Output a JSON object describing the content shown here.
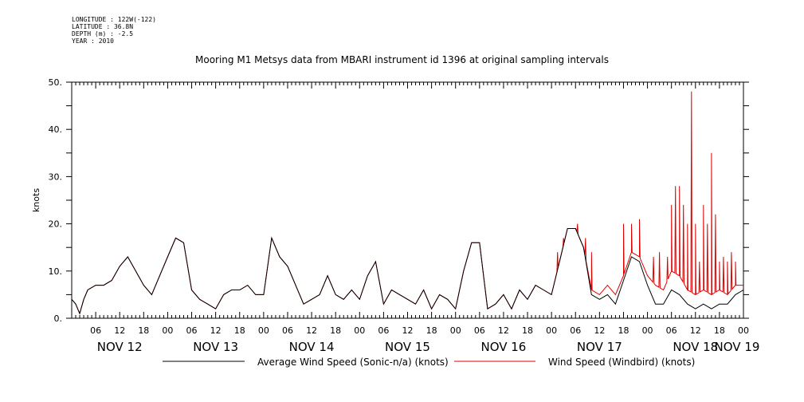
{
  "header": {
    "longitude": "LONGITUDE : 122W(-122)",
    "latitude": "LATITUDE : 36.8N",
    "depth": "DEPTH (m) : -2.5",
    "year": "YEAR : 2010"
  },
  "chart_data": {
    "type": "line",
    "title": "Mooring M1 Metsys data from MBARI instrument id 1396 at original sampling intervals",
    "ylabel": "knots",
    "ylim": [
      0,
      50
    ],
    "y_ticks": [
      "0.",
      "10.",
      "20.",
      "30.",
      "40.",
      "50."
    ],
    "xlim_hours": [
      0,
      168
    ],
    "hour_tick_labels": [
      "06",
      "12",
      "18",
      "00",
      "06",
      "12",
      "18",
      "00",
      "06",
      "12",
      "18",
      "00",
      "06",
      "12",
      "18",
      "00",
      "06",
      "12",
      "18",
      "00",
      "06",
      "12",
      "18",
      "00",
      "06",
      "12",
      "18",
      "00"
    ],
    "day_labels": [
      "NOV 12",
      "NOV 13",
      "NOV 14",
      "NOV 15",
      "NOV 16",
      "NOV 17",
      "NOV 18",
      "NOV 19"
    ],
    "grid": false,
    "legend_position": "bottom",
    "colors": {
      "sonic": "#000000",
      "windbird": "#dd0000"
    },
    "series": [
      {
        "name": "Average Wind Speed (Sonic-n/a) (knots)",
        "key": "sonic",
        "x_hours": [
          0,
          1,
          2,
          3,
          4,
          6,
          8,
          10,
          12,
          14,
          16,
          18,
          20,
          22,
          24,
          26,
          28,
          30,
          32,
          34,
          36,
          38,
          40,
          42,
          44,
          46,
          48,
          50,
          52,
          54,
          56,
          58,
          60,
          62,
          64,
          66,
          68,
          70,
          72,
          74,
          76,
          78,
          80,
          82,
          84,
          86,
          88,
          90,
          92,
          94,
          96,
          98,
          100,
          102,
          104,
          106,
          108,
          110,
          112,
          114,
          116,
          118,
          120,
          122,
          124,
          126,
          128,
          130,
          132,
          134,
          136,
          138,
          140,
          142,
          144,
          146,
          148,
          150,
          152,
          154,
          156,
          158,
          160,
          162,
          164,
          166,
          168
        ],
        "values": [
          4,
          3,
          1,
          4,
          6,
          7,
          7,
          8,
          11,
          13,
          10,
          7,
          5,
          9,
          13,
          17,
          16,
          6,
          4,
          3,
          2,
          5,
          6,
          6,
          7,
          5,
          5,
          17,
          13,
          11,
          7,
          3,
          4,
          5,
          9,
          5,
          4,
          6,
          4,
          9,
          12,
          3,
          6,
          5,
          4,
          3,
          6,
          2,
          5,
          4,
          2,
          10,
          16,
          16,
          2,
          3,
          5,
          2,
          6,
          4,
          7,
          6,
          5,
          12,
          19,
          19,
          15,
          5,
          4,
          5,
          3,
          8,
          13,
          12,
          7,
          3,
          3,
          6,
          5,
          3,
          2,
          3,
          2,
          3,
          3,
          5,
          6
        ]
      },
      {
        "name": "Wind Speed (Windbird) (knots)",
        "key": "windbird",
        "x_hours": [
          0,
          1,
          2,
          3,
          4,
          6,
          8,
          10,
          12,
          14,
          16,
          18,
          20,
          22,
          24,
          26,
          28,
          30,
          32,
          34,
          36,
          38,
          40,
          42,
          44,
          46,
          48,
          50,
          52,
          54,
          56,
          58,
          60,
          62,
          64,
          66,
          68,
          70,
          72,
          74,
          76,
          78,
          80,
          82,
          84,
          86,
          88,
          90,
          92,
          94,
          96,
          98,
          100,
          102,
          104,
          106,
          108,
          110,
          112,
          114,
          116,
          118,
          120,
          122,
          124,
          126,
          128,
          130,
          132,
          134,
          136,
          138,
          140,
          142,
          144,
          146,
          148,
          150,
          152,
          154,
          156,
          158,
          160,
          162,
          164,
          166,
          168
        ],
        "values": [
          4,
          3,
          1,
          4,
          6,
          7,
          7,
          8,
          11,
          13,
          10,
          7,
          5,
          9,
          13,
          17,
          16,
          6,
          4,
          3,
          2,
          5,
          6,
          6,
          7,
          5,
          5,
          17,
          13,
          11,
          7,
          3,
          4,
          5,
          9,
          5,
          4,
          6,
          4,
          9,
          12,
          3,
          6,
          5,
          4,
          3,
          6,
          2,
          5,
          4,
          2,
          10,
          16,
          16,
          2,
          3,
          5,
          2,
          6,
          4,
          7,
          6,
          5,
          12,
          19,
          19,
          15,
          6,
          5,
          7,
          5,
          9,
          14,
          13,
          9,
          7,
          6,
          10,
          9,
          6,
          5,
          6,
          5,
          6,
          5,
          7,
          7
        ]
      }
    ],
    "windbird_spikes": {
      "x_hours": [
        121.5,
        123,
        125,
        126.5,
        128.5,
        130,
        138,
        140,
        142,
        145.5,
        147,
        149,
        150,
        151,
        152,
        153,
        154,
        155,
        156,
        157,
        158,
        159,
        160,
        161,
        162,
        163,
        164,
        165,
        166
      ],
      "values": [
        14,
        17,
        19,
        20,
        17,
        14,
        20,
        20,
        21,
        13,
        14,
        13,
        24,
        28,
        28,
        24,
        20,
        48,
        20,
        12,
        24,
        20,
        35,
        22,
        12,
        13,
        12,
        14,
        12
      ]
    }
  }
}
